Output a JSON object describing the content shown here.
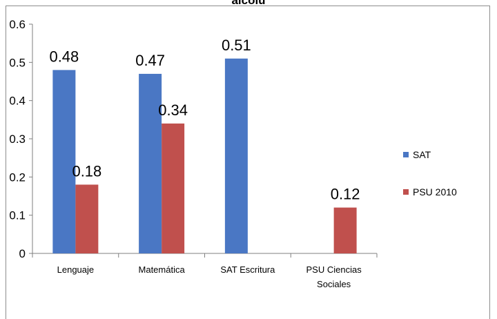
{
  "chart_data": {
    "type": "bar",
    "title": "alcolu",
    "categories": [
      "Lenguaje",
      "Matemática",
      "SAT Escritura",
      "PSU Ciencias Sociales"
    ],
    "category_lines": [
      [
        "Lenguaje"
      ],
      [
        "Matemática"
      ],
      [
        "SAT Escritura"
      ],
      [
        "PSU Ciencias",
        "Sociales"
      ]
    ],
    "series": [
      {
        "name": "SAT",
        "color": "#4a77c4",
        "values": [
          0.48,
          0.47,
          0.51,
          null
        ],
        "labels": [
          "0.48",
          "0.47",
          "0.51",
          ""
        ]
      },
      {
        "name": "PSU 2010",
        "color": "#c0504d",
        "values": [
          0.18,
          0.34,
          null,
          0.12
        ],
        "labels": [
          "0.18",
          "0.34",
          "",
          "0.12"
        ]
      }
    ],
    "ylim": [
      0,
      0.6
    ],
    "yticks": [
      0,
      0.1,
      0.2,
      0.3,
      0.4,
      0.5,
      0.6
    ],
    "ytick_labels": [
      "0",
      "0.1",
      "0.2",
      "0.3",
      "0.4",
      "0.5",
      "0.6"
    ],
    "xlabel": "",
    "ylabel": "",
    "grid": false,
    "legend": "right"
  }
}
